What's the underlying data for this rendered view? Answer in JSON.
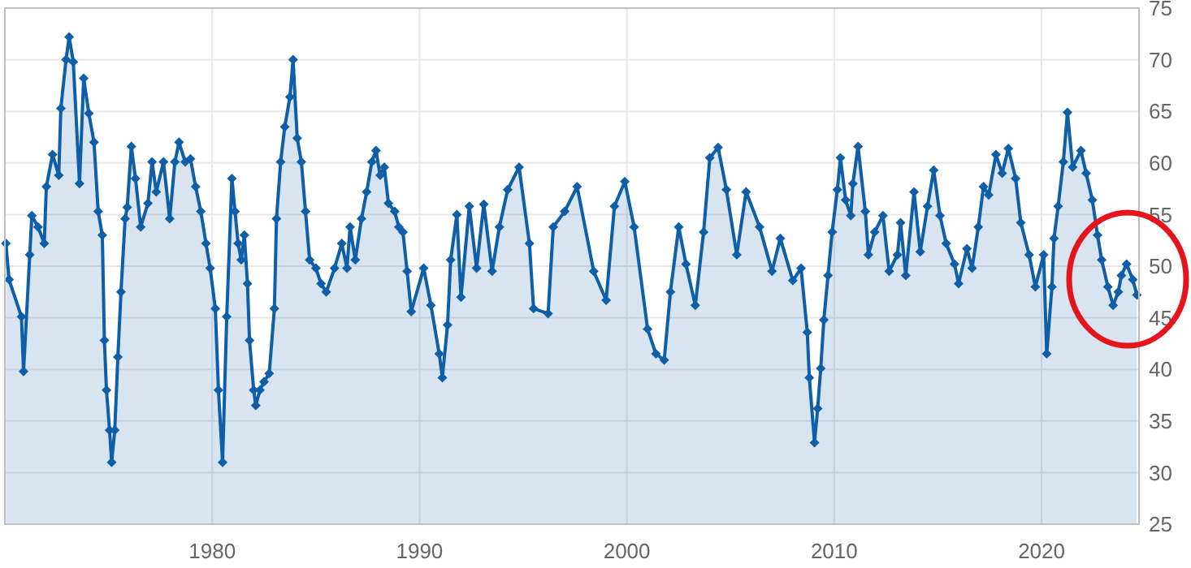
{
  "chart_data": {
    "type": "area",
    "color": "#0e5ea8",
    "marker": "diamond",
    "grid": true,
    "xlim": [
      1970,
      2024.7
    ],
    "ylim": [
      25,
      75
    ],
    "xticks": [
      {
        "value": 1980,
        "label": "1980"
      },
      {
        "value": 1990,
        "label": "1990"
      },
      {
        "value": 2000,
        "label": "2000"
      },
      {
        "value": 2010,
        "label": "2010"
      },
      {
        "value": 2020,
        "label": "2020"
      }
    ],
    "yticks": [
      25,
      30,
      35,
      40,
      45,
      50,
      55,
      60,
      65,
      70,
      75
    ],
    "x": [
      1970.05,
      1970.2,
      1970.8,
      1970.9,
      1971.2,
      1971.3,
      1971.6,
      1971.9,
      1972.0,
      1972.3,
      1972.6,
      1972.7,
      1972.95,
      1973.1,
      1973.3,
      1973.6,
      1973.8,
      1974.05,
      1974.3,
      1974.5,
      1974.7,
      1974.8,
      1974.9,
      1975.05,
      1975.15,
      1975.3,
      1975.45,
      1975.6,
      1975.8,
      1975.9,
      1976.1,
      1976.3,
      1976.55,
      1976.9,
      1977.1,
      1977.3,
      1977.65,
      1977.95,
      1978.2,
      1978.4,
      1978.7,
      1978.95,
      1979.2,
      1979.45,
      1979.7,
      1979.9,
      1980.15,
      1980.3,
      1980.5,
      1980.7,
      1980.95,
      1981.1,
      1981.25,
      1981.4,
      1981.55,
      1981.7,
      1981.8,
      1982.0,
      1982.1,
      1982.3,
      1982.5,
      1982.75,
      1983.0,
      1983.1,
      1983.3,
      1983.5,
      1983.75,
      1983.9,
      1984.1,
      1984.3,
      1984.5,
      1984.7,
      1985.0,
      1985.25,
      1985.5,
      1985.9,
      1986.25,
      1986.5,
      1986.65,
      1986.9,
      1987.2,
      1987.45,
      1987.7,
      1987.9,
      1988.1,
      1988.3,
      1988.5,
      1988.8,
      1989.0,
      1989.2,
      1989.4,
      1989.6,
      1990.2,
      1990.55,
      1990.95,
      1991.1,
      1991.35,
      1991.5,
      1991.8,
      1992.0,
      1992.4,
      1992.75,
      1993.1,
      1993.5,
      1993.85,
      1994.25,
      1994.8,
      1995.3,
      1995.5,
      1996.2,
      1996.45,
      1997.0,
      1997.6,
      1998.4,
      1999.0,
      1999.4,
      1999.9,
      2000.35,
      2001.0,
      2001.4,
      2001.8,
      2002.1,
      2002.5,
      2002.85,
      2003.3,
      2003.7,
      2004.0,
      2004.4,
      2004.8,
      2005.3,
      2005.75,
      2006.4,
      2007.0,
      2007.4,
      2008.0,
      2008.4,
      2008.7,
      2008.8,
      2009.05,
      2009.2,
      2009.35,
      2009.5,
      2009.7,
      2009.9,
      2010.15,
      2010.3,
      2010.55,
      2010.8,
      2010.9,
      2011.15,
      2011.5,
      2011.65,
      2011.95,
      2012.35,
      2012.65,
      2013.05,
      2013.2,
      2013.45,
      2013.85,
      2014.15,
      2014.5,
      2014.8,
      2015.1,
      2015.4,
      2015.8,
      2016.0,
      2016.4,
      2016.65,
      2016.95,
      2017.2,
      2017.45,
      2017.8,
      2018.1,
      2018.4,
      2018.75,
      2019.0,
      2019.4,
      2019.7,
      2020.1,
      2020.25,
      2020.5,
      2020.6,
      2020.8,
      2021.05,
      2021.25,
      2021.5,
      2021.9,
      2022.15,
      2022.45,
      2022.7,
      2022.9,
      2023.2,
      2023.45,
      2023.7,
      2023.85,
      2024.1,
      2024.4,
      2024.6
    ],
    "values": [
      52.2,
      48.7,
      45.1,
      39.8,
      51.1,
      54.9,
      53.8,
      52.2,
      57.7,
      60.8,
      58.8,
      65.3,
      70,
      72.2,
      69.8,
      58,
      68.2,
      64.8,
      62,
      55.3,
      53,
      42.8,
      38,
      34.1,
      31,
      34.1,
      41.2,
      47.5,
      54.6,
      55.7,
      61.6,
      58.5,
      53.8,
      56.1,
      60.1,
      57.2,
      60.1,
      54.6,
      60.1,
      62,
      60.1,
      60.4,
      57.7,
      55.3,
      52.2,
      49.8,
      45.9,
      38,
      31,
      45.1,
      58.5,
      55.3,
      52.2,
      50.6,
      53,
      48.3,
      42.8,
      38,
      36.5,
      38,
      38.8,
      39.6,
      45.9,
      54.6,
      60.1,
      63.5,
      66.4,
      70,
      62.4,
      60.1,
      55.3,
      50.6,
      49.8,
      48.3,
      47.5,
      49.8,
      52.2,
      49.8,
      53.8,
      50.6,
      54.6,
      57.2,
      60.1,
      61.2,
      58.8,
      59.6,
      56.1,
      55.3,
      53.8,
      53.3,
      49.5,
      45.6,
      49.8,
      46.2,
      41.5,
      39.2,
      44.3,
      50.6,
      55,
      47,
      55.8,
      49.8,
      56,
      49.5,
      53.8,
      57.4,
      59.6,
      52.2,
      45.9,
      45.4,
      53.8,
      55.3,
      57.7,
      49.5,
      46.7,
      55.8,
      58.2,
      53.8,
      43.9,
      41.5,
      40.9,
      47.5,
      53.8,
      50.2,
      46.2,
      53.3,
      60.5,
      61.5,
      57.4,
      51.1,
      57.2,
      53.8,
      49.5,
      52.7,
      48.6,
      49.8,
      43.6,
      39.2,
      32.9,
      36.2,
      40.1,
      44.8,
      49.1,
      53.3,
      57.4,
      60.5,
      56.4,
      54.9,
      58,
      61.6,
      55.3,
      51.1,
      53.3,
      54.9,
      49.5,
      51.1,
      54.2,
      49.1,
      57.2,
      51.4,
      55.8,
      59.3,
      54.9,
      52.2,
      50.2,
      48.3,
      51.7,
      49.8,
      53.8,
      57.7,
      56.9,
      60.8,
      59,
      61.4,
      58.5,
      54.2,
      51.1,
      48,
      51.1,
      41.5,
      48,
      52.7,
      55.8,
      60.1,
      64.9,
      59.6,
      61.2,
      59,
      56.4,
      53,
      50.6,
      48,
      46.2,
      47.5,
      49.1,
      50.2,
      48.7,
      47.2
    ]
  }
}
